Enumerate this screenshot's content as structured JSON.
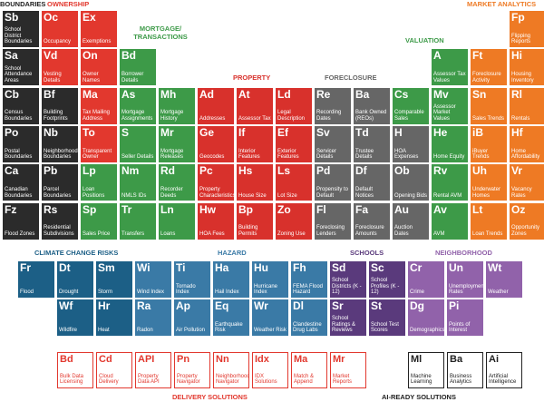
{
  "sections": [
    {
      "title": "BOUNDARIES",
      "tiles": [
        {
          "symbol": "Sb",
          "label": "School District Boundaries"
        },
        {
          "symbol": "Sa",
          "label": "School Attendance Areas"
        },
        {
          "symbol": "Cb",
          "label": "Census Boundaries"
        },
        {
          "symbol": "Po",
          "label": "Postal Boundaries"
        },
        {
          "symbol": "Ca",
          "label": "Canadian Boundaries"
        },
        {
          "symbol": "Fz",
          "label": "Flood Zones"
        },
        {
          "symbol": "Bf",
          "label": "Building Footprints"
        },
        {
          "symbol": "Nb",
          "label": "Neighborhood Boundaries"
        },
        {
          "symbol": "Pb",
          "label": "Parcel Boundaries"
        },
        {
          "symbol": "Rs",
          "label": "Residential Subdivisions"
        }
      ]
    },
    {
      "title": "OWNERSHIP",
      "tiles": [
        {
          "symbol": "Oc",
          "label": "Occupancy"
        },
        {
          "symbol": "Ex",
          "label": "Exemptions"
        },
        {
          "symbol": "Vd",
          "label": "Vesting Details"
        },
        {
          "symbol": "On",
          "label": "Owner Names"
        },
        {
          "symbol": "Ma",
          "label": "Tax Mailing Address"
        },
        {
          "symbol": "To",
          "label": "Transparent Owner"
        }
      ]
    },
    {
      "title": "MORTGAGE/ TRANSACTIONS",
      "tiles": [
        {
          "symbol": "Lp",
          "label": "Loan Positions"
        },
        {
          "symbol": "Sp",
          "label": "Sales Price"
        },
        {
          "symbol": "Bd",
          "label": "Borrower Details"
        },
        {
          "symbol": "As",
          "label": "Mortgage Assignments"
        },
        {
          "symbol": "S",
          "label": "Seller Details"
        },
        {
          "symbol": "Nm",
          "label": "NMLS IDs"
        },
        {
          "symbol": "Tr",
          "label": "Transfers"
        },
        {
          "symbol": "Mh",
          "label": "Mortgage History"
        },
        {
          "symbol": "Mr",
          "label": "Mortgage Releases"
        },
        {
          "symbol": "Rd",
          "label": "Recorder Deeds"
        },
        {
          "symbol": "Ln",
          "label": "Loans"
        }
      ]
    },
    {
      "title": "PROPERTY",
      "tiles": [
        {
          "symbol": "Ad",
          "label": "Addresses"
        },
        {
          "symbol": "Ge",
          "label": "Geocodes"
        },
        {
          "symbol": "Pc",
          "label": "Property Characteristics"
        },
        {
          "symbol": "Hw",
          "label": "HOA Fees"
        },
        {
          "symbol": "At",
          "label": "Assessor Tax"
        },
        {
          "symbol": "If",
          "label": "Interior Features"
        },
        {
          "symbol": "Hs",
          "label": "House Size"
        },
        {
          "symbol": "Bp",
          "label": "Building Permits"
        },
        {
          "symbol": "Ld",
          "label": "Legal Description"
        },
        {
          "symbol": "Ef",
          "label": "Exterior Features"
        },
        {
          "symbol": "Ls",
          "label": "Lot Size"
        },
        {
          "symbol": "Zo",
          "label": "Zoning Use"
        }
      ]
    },
    {
      "title": "FORECLOSURE",
      "tiles": [
        {
          "symbol": "Re",
          "label": "Recording Dates"
        },
        {
          "symbol": "Sv",
          "label": "Servicer Details"
        },
        {
          "symbol": "Pd",
          "label": "Propensity to Default"
        },
        {
          "symbol": "Fl",
          "label": "Foreclosing Lenders"
        },
        {
          "symbol": "Ba",
          "label": "Bank Owned (REOs)"
        },
        {
          "symbol": "Td",
          "label": "Trustee Details"
        },
        {
          "symbol": "Df",
          "label": "Default Notices"
        },
        {
          "symbol": "Fa",
          "label": "Foreclosure Amounts"
        },
        {
          "symbol": "H",
          "label": "HOA Expenses"
        },
        {
          "symbol": "Ob",
          "label": "Opening Bids"
        },
        {
          "symbol": "Au",
          "label": "Auction Dates"
        }
      ]
    },
    {
      "title": "VALUATION",
      "tiles": [
        {
          "symbol": "Cs",
          "label": "Comparable Sales"
        },
        {
          "symbol": "A",
          "label": "Assessor Tax Values"
        },
        {
          "symbol": "Mv",
          "label": "Assessor Market Values"
        },
        {
          "symbol": "He",
          "label": "Home Equity"
        },
        {
          "symbol": "Rv",
          "label": "Rental AVM"
        },
        {
          "symbol": "Av",
          "label": "AVM"
        }
      ]
    },
    {
      "title": "MARKET ANALYTICS",
      "tiles": [
        {
          "symbol": "Ft",
          "label": "Foreclosure Activity"
        },
        {
          "symbol": "Sn",
          "label": "Sales Trends"
        },
        {
          "symbol": "iB",
          "label": "iBuyer Trends"
        },
        {
          "symbol": "Uh",
          "label": "Underwater Homes"
        },
        {
          "symbol": "Lt",
          "label": "Loan Trends"
        },
        {
          "symbol": "Fp",
          "label": "Flipping Reports"
        },
        {
          "symbol": "Hi",
          "label": "Housing Inventory"
        },
        {
          "symbol": "Rl",
          "label": "Rentals"
        },
        {
          "symbol": "Hf",
          "label": "Home Affordability"
        },
        {
          "symbol": "Vr",
          "label": "Vacancy Rates"
        },
        {
          "symbol": "Oz",
          "label": "Opportunity Zones"
        }
      ]
    },
    {
      "title": "CLIMATE CHANGE RISKS",
      "tiles": [
        {
          "symbol": "Fr",
          "label": "Flood"
        },
        {
          "symbol": "Dt",
          "label": "Drought"
        },
        {
          "symbol": "Sm",
          "label": "Storm"
        },
        {
          "symbol": "Wf",
          "label": "Wildfire"
        },
        {
          "symbol": "Hr",
          "label": "Heat"
        }
      ]
    },
    {
      "title": "HAZARD",
      "tiles": [
        {
          "symbol": "Wi",
          "label": "Wind Index"
        },
        {
          "symbol": "Ti",
          "label": "Tornado Index"
        },
        {
          "symbol": "Ha",
          "label": "Hail Index"
        },
        {
          "symbol": "Hu",
          "label": "Hurricane Index"
        },
        {
          "symbol": "Fh",
          "label": "FEMA Flood Hazard"
        },
        {
          "symbol": "Ra",
          "label": "Radon"
        },
        {
          "symbol": "Ap",
          "label": "Air Pollution"
        },
        {
          "symbol": "Eq",
          "label": "Earthquake Risk"
        },
        {
          "symbol": "Wr",
          "label": "Weather Risk"
        },
        {
          "symbol": "Dl",
          "label": "Clandestine Drug Labs"
        }
      ]
    },
    {
      "title": "SCHOOLS",
      "tiles": [
        {
          "symbol": "Sd",
          "label": "School Districts (K - 12)"
        },
        {
          "symbol": "Sc",
          "label": "School Profiles (K - 12)"
        },
        {
          "symbol": "Sr",
          "label": "School Ratings & Reviews"
        },
        {
          "symbol": "St",
          "label": "School Test Scores"
        }
      ]
    },
    {
      "title": "NEIGHBORHOOD",
      "tiles": [
        {
          "symbol": "Cr",
          "label": "Crime"
        },
        {
          "symbol": "Un",
          "label": "Unemployment Rates"
        },
        {
          "symbol": "Wt",
          "label": "Weather"
        },
        {
          "symbol": "Dg",
          "label": "Demographics"
        },
        {
          "symbol": "Pi",
          "label": "Points of Interest"
        }
      ]
    },
    {
      "title": "DELIVERY SOLUTIONS",
      "tiles": [
        {
          "symbol": "Bd",
          "label": "Bulk Data Licensing"
        },
        {
          "symbol": "Cd",
          "label": "Cloud Delivery"
        },
        {
          "symbol": "API",
          "label": "Property Data API"
        },
        {
          "symbol": "Pn",
          "label": "Property Navigator"
        },
        {
          "symbol": "Nn",
          "label": "Neighborhood Navigator"
        },
        {
          "symbol": "Idx",
          "label": "IDX Solutions"
        },
        {
          "symbol": "Ma",
          "label": "Match & Append"
        },
        {
          "symbol": "Mr",
          "label": "Market Reports"
        }
      ]
    },
    {
      "title": "AI-READY SOLUTIONS",
      "tiles": [
        {
          "symbol": "Ml",
          "label": "Machine Learning"
        },
        {
          "symbol": "Ba",
          "label": "Business Analytics"
        },
        {
          "symbol": "Ai",
          "label": "Artificial Intelligence"
        }
      ]
    }
  ]
}
